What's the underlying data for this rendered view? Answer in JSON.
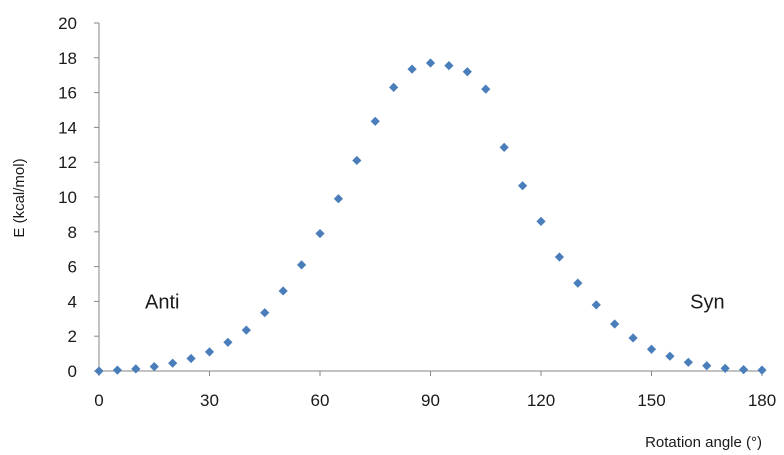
{
  "chart_data": {
    "type": "scatter",
    "xlabel": "Rotation angle (°)",
    "ylabel": "E (kcal/mol)",
    "xlim": [
      0,
      180
    ],
    "ylim": [
      0,
      20
    ],
    "x_ticks": [
      "0",
      "30",
      "60",
      "90",
      "120",
      "150",
      "180"
    ],
    "y_ticks": [
      "0",
      "2",
      "4",
      "6",
      "8",
      "10",
      "12",
      "14",
      "16",
      "18",
      "20"
    ],
    "grid": false,
    "marker": "diamond",
    "color": "#4a7ebb",
    "annotations": [
      {
        "text": "Anti",
        "x": 15,
        "y": 4
      },
      {
        "text": "Syn",
        "x": 163,
        "y": 4
      }
    ],
    "series": [
      {
        "x": [
          0,
          5,
          10,
          15,
          20,
          25,
          30,
          35,
          40,
          45,
          50,
          55,
          60,
          65,
          70,
          75,
          80,
          85,
          90,
          95,
          100,
          105,
          110,
          115,
          120,
          125,
          130,
          135,
          140,
          145,
          150,
          155,
          160,
          165,
          170,
          175,
          180
        ],
        "y": [
          0.0,
          0.05,
          0.12,
          0.25,
          0.45,
          0.72,
          1.1,
          1.65,
          2.35,
          3.35,
          4.6,
          6.1,
          7.9,
          9.9,
          12.1,
          14.35,
          16.3,
          17.35,
          17.7,
          17.55,
          17.2,
          16.2,
          12.85,
          10.65,
          8.6,
          6.55,
          5.05,
          3.8,
          2.7,
          1.9,
          1.25,
          0.85,
          0.5,
          0.3,
          0.15,
          0.08,
          0.05
        ]
      }
    ]
  }
}
